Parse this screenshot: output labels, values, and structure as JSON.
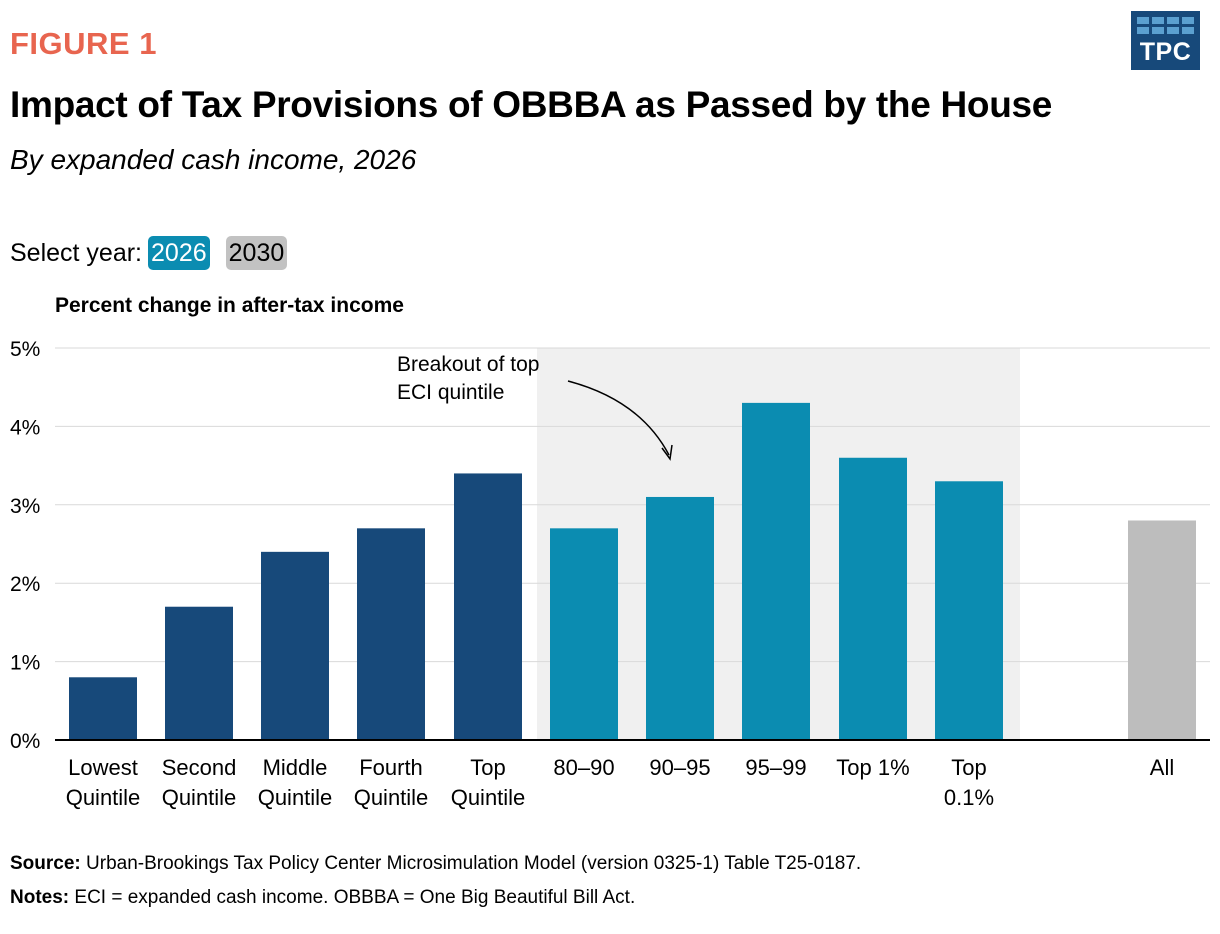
{
  "header": {
    "figure_label": "FIGURE 1",
    "logo_text": "TPC",
    "title": "Impact of Tax Provisions of OBBBA as Passed by the House",
    "subtitle": "By expanded cash income, 2026"
  },
  "selector": {
    "label": "Select year:",
    "options": [
      "2026",
      "2030"
    ],
    "selected": "2026"
  },
  "colors": {
    "quintile": "#17497a",
    "breakout": "#0b8cb1",
    "all": "#bdbdbd",
    "breakout_bg": "#f0f0f0",
    "accent": "#e8654f"
  },
  "chart_data": {
    "type": "bar",
    "ylabel": "Percent change in after-tax income",
    "ylim": [
      0,
      5
    ],
    "yticks": [
      "0%",
      "1%",
      "2%",
      "3%",
      "4%",
      "5%"
    ],
    "annotation": [
      "Breakout of top",
      "ECI quintile"
    ],
    "categories": [
      [
        "Lowest",
        "Quintile"
      ],
      [
        "Second",
        "Quintile"
      ],
      [
        "Middle",
        "Quintile"
      ],
      [
        "Fourth",
        "Quintile"
      ],
      [
        "Top",
        "Quintile"
      ],
      [
        "80–90"
      ],
      [
        "90–95"
      ],
      [
        "95–99"
      ],
      [
        "Top 1%"
      ],
      [
        "Top",
        "0.1%"
      ],
      [
        "All"
      ]
    ],
    "groups": [
      "quintile",
      "quintile",
      "quintile",
      "quintile",
      "quintile",
      "breakout",
      "breakout",
      "breakout",
      "breakout",
      "breakout",
      "all"
    ],
    "values": [
      0.8,
      1.7,
      2.4,
      2.7,
      3.4,
      2.7,
      3.1,
      4.3,
      3.6,
      3.3,
      2.8
    ]
  },
  "footer": {
    "source_label": "Source:",
    "source_text": "Urban-Brookings Tax Policy Center Microsimulation Model (version 0325-1) Table T25-0187.",
    "notes_label": "Notes:",
    "notes_text": "ECI = expanded cash income. OBBBA = One Big Beautiful Bill Act."
  }
}
